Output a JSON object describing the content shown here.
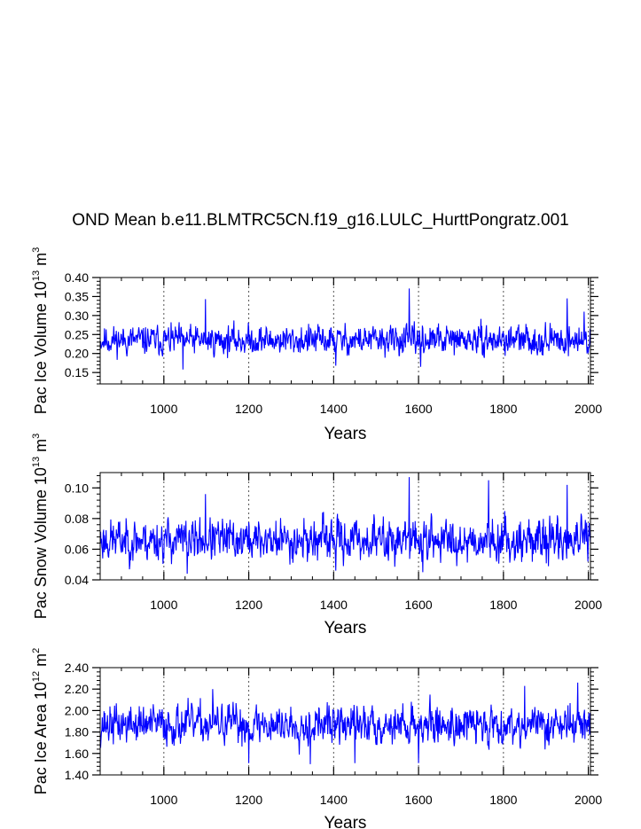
{
  "title": "OND Mean b.e11.BLMTRC5CN.f19_g16.LULC_HurttPongratz.001",
  "chart_data": [
    {
      "type": "line",
      "name": "ice-volume",
      "ylabel_parts": [
        "Pac Ice Volume 10",
        "13",
        " m",
        "3"
      ],
      "xlabel": "Years",
      "xlim": [
        850,
        2005
      ],
      "ylim": [
        0.12,
        0.4
      ],
      "xticks": [
        1000,
        1200,
        1400,
        1600,
        1800,
        2000
      ],
      "xtick_labels": [
        "1000",
        "1200",
        "1400",
        "1600",
        "1800",
        "2000"
      ],
      "yticks": [
        0.15,
        0.2,
        0.25,
        0.3,
        0.35,
        0.4
      ],
      "ytick_labels": [
        "0.15",
        "0.20",
        "0.25",
        "0.30",
        "0.35",
        "0.40"
      ],
      "series_color": "#0000ff",
      "baseline": 0.235,
      "amplitude": 0.022,
      "seed": 11,
      "spikes": [
        [
          1098,
          0.343
        ],
        [
          1578,
          0.371
        ],
        [
          1950,
          0.345
        ],
        [
          1405,
          0.168
        ],
        [
          1605,
          0.165
        ],
        [
          1045,
          0.158
        ],
        [
          1990,
          0.31
        ]
      ],
      "ref_lines": [
        1000,
        1200,
        1400,
        1600,
        1800,
        2000
      ]
    },
    {
      "type": "line",
      "name": "snow-volume",
      "ylabel_parts": [
        "Pac Snow Volume 10",
        "13",
        " m",
        "3"
      ],
      "xlabel": "Years",
      "xlim": [
        850,
        2005
      ],
      "ylim": [
        0.04,
        0.11
      ],
      "xticks": [
        1000,
        1200,
        1400,
        1600,
        1800,
        2000
      ],
      "xtick_labels": [
        "1000",
        "1200",
        "1400",
        "1600",
        "1800",
        "2000"
      ],
      "yticks": [
        0.04,
        0.06,
        0.08,
        0.1
      ],
      "ytick_labels": [
        "0.04",
        "0.06",
        "0.08",
        "0.10"
      ],
      "series_color": "#0000ff",
      "baseline": 0.066,
      "amplitude": 0.0078,
      "seed": 23,
      "spikes": [
        [
          1578,
          0.107
        ],
        [
          1765,
          0.105
        ],
        [
          1950,
          0.102
        ],
        [
          1055,
          0.044
        ],
        [
          1405,
          0.046
        ],
        [
          1610,
          0.045
        ],
        [
          1098,
          0.096
        ]
      ],
      "ref_lines": [
        1000,
        1200,
        1400,
        1600,
        1800,
        2000
      ]
    },
    {
      "type": "line",
      "name": "ice-area",
      "ylabel_parts": [
        "Pac Ice Area 10",
        "12",
        " m",
        "2"
      ],
      "xlabel": "Years",
      "xlim": [
        850,
        2005
      ],
      "ylim": [
        1.4,
        2.4
      ],
      "xticks": [
        1000,
        1200,
        1400,
        1600,
        1800,
        2000
      ],
      "xtick_labels": [
        "1000",
        "1200",
        "1400",
        "1600",
        "1800",
        "2000"
      ],
      "yticks": [
        1.4,
        1.6,
        1.8,
        2.0,
        2.2,
        2.4
      ],
      "ytick_labels": [
        "1.40",
        "1.60",
        "1.80",
        "2.00",
        "2.20",
        "2.40"
      ],
      "series_color": "#0000ff",
      "baseline": 1.87,
      "amplitude": 0.105,
      "seed": 37,
      "spikes": [
        [
          1115,
          2.2
        ],
        [
          1850,
          2.23
        ],
        [
          1975,
          2.26
        ],
        [
          1200,
          1.51
        ],
        [
          1450,
          1.51
        ],
        [
          1600,
          1.51
        ],
        [
          1345,
          1.5
        ]
      ],
      "ref_lines": [
        1000,
        1200,
        1400,
        1600,
        1800,
        2000
      ]
    }
  ]
}
